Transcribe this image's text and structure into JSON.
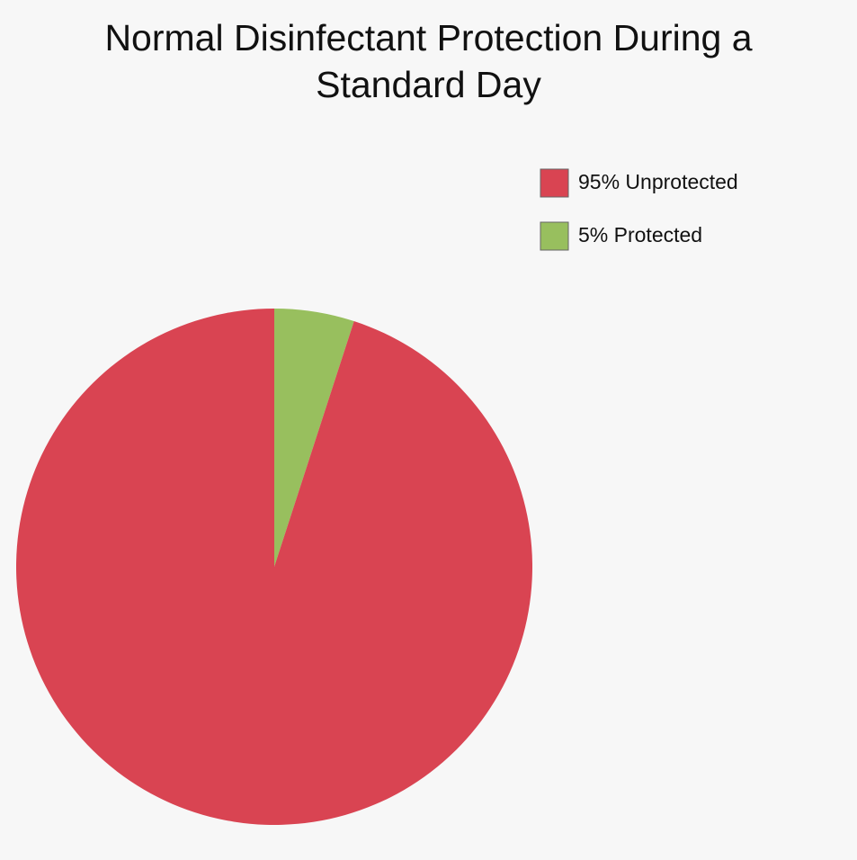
{
  "chart_data": {
    "type": "pie",
    "title": "Normal Disinfectant Protection During a Standard Day",
    "categories": [
      "95% Unprotected",
      "5% Protected"
    ],
    "values": [
      95,
      5
    ],
    "colors": [
      "#d94452",
      "#98bf5e"
    ],
    "legend": "top-right"
  }
}
